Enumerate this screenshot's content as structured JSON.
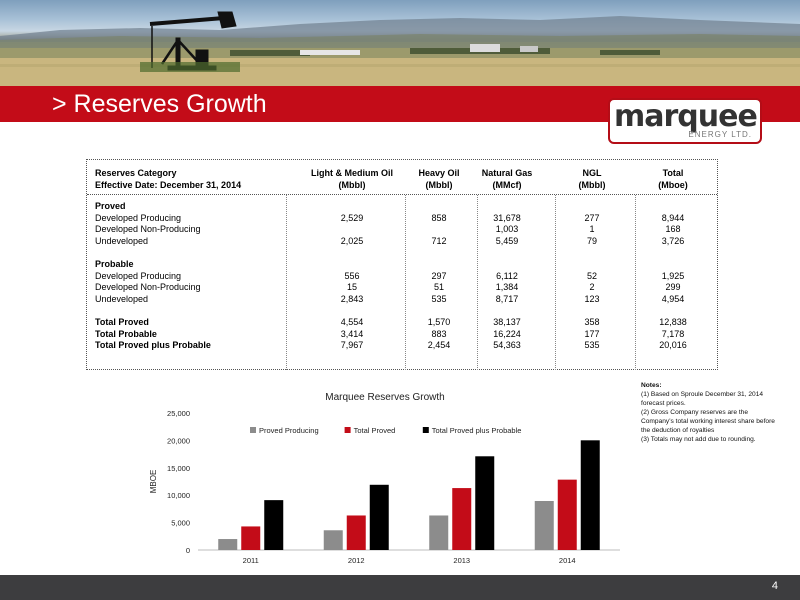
{
  "slide": {
    "title": "> Reserves Growth",
    "page_number": "4"
  },
  "logo": {
    "word": "marquee",
    "sub": "ENERGY LTD."
  },
  "table": {
    "header": {
      "col0_line1": "Reserves Category",
      "col0_line2": "Effective Date: December 31, 2014",
      "cols": [
        {
          "line1": "Light & Medium Oil",
          "line2": "(Mbbl)"
        },
        {
          "line1": "Heavy Oil",
          "line2": "(Mbbl)"
        },
        {
          "line1": "Natural Gas",
          "line2": "(MMcf)"
        },
        {
          "line1": "NGL",
          "line2": "(Mbbl)"
        },
        {
          "line1": "Total",
          "line2": "(Mboe)"
        }
      ]
    },
    "rows": [
      {
        "label": "Proved",
        "bold": true,
        "values": [
          "",
          "",
          "",
          "",
          ""
        ]
      },
      {
        "label": "Developed Producing",
        "bold": false,
        "values": [
          "2,529",
          "858",
          "31,678",
          "277",
          "8,944"
        ]
      },
      {
        "label": "Developed Non-Producing",
        "bold": false,
        "values": [
          "",
          "",
          "1,003",
          "1",
          "168"
        ]
      },
      {
        "label": "Undeveloped",
        "bold": false,
        "values": [
          "2,025",
          "712",
          "5,459",
          "79",
          "3,726"
        ]
      },
      {
        "label": "",
        "bold": false,
        "values": [
          "",
          "",
          "",
          "",
          ""
        ]
      },
      {
        "label": "Probable",
        "bold": true,
        "values": [
          "",
          "",
          "",
          "",
          ""
        ]
      },
      {
        "label": "Developed Producing",
        "bold": false,
        "values": [
          "556",
          "297",
          "6,112",
          "52",
          "1,925"
        ]
      },
      {
        "label": "Developed Non-Producing",
        "bold": false,
        "values": [
          "15",
          "51",
          "1,384",
          "2",
          "299"
        ]
      },
      {
        "label": "Undeveloped",
        "bold": false,
        "values": [
          "2,843",
          "535",
          "8,717",
          "123",
          "4,954"
        ]
      },
      {
        "label": "",
        "bold": false,
        "values": [
          "",
          "",
          "",
          "",
          ""
        ]
      },
      {
        "label": "Total Proved",
        "bold": true,
        "values": [
          "4,554",
          "1,570",
          "38,137",
          "358",
          "12,838"
        ]
      },
      {
        "label": "Total Probable",
        "bold": true,
        "values": [
          "3,414",
          "883",
          "16,224",
          "177",
          "7,178"
        ]
      },
      {
        "label": "Total Proved plus Probable",
        "bold": true,
        "values": [
          "7,967",
          "2,454",
          "54,363",
          "535",
          "20,016"
        ]
      }
    ]
  },
  "notes": {
    "heading": "Notes:",
    "items": [
      "(1) Based on Sproule December 31, 2014 forecast prices.",
      "(2) Gross Company reserves are the Company's total working interest share before the deduction of royalties",
      "(3) Totals may not add due to rounding."
    ]
  },
  "chart_data": {
    "type": "bar",
    "title": "Marquee Reserves Growth",
    "ylabel": "MBOE",
    "xlabel": "",
    "categories": [
      "2011",
      "2012",
      "2013",
      "2014"
    ],
    "series": [
      {
        "name": "Proved Producing",
        "color": "#8c8c8c",
        "values": [
          2000,
          3600,
          6300,
          8944
        ]
      },
      {
        "name": "Total Proved",
        "color": "#c30c18",
        "values": [
          4300,
          6300,
          11300,
          12838
        ]
      },
      {
        "name": "Total Proved plus Probable",
        "color": "#000000",
        "values": [
          9100,
          11900,
          17100,
          20016
        ]
      }
    ],
    "ylim": [
      0,
      25000
    ],
    "yticks": [
      "0",
      "5,000",
      "10,000",
      "15,000",
      "20,000",
      "25,000"
    ],
    "ytick_values": [
      0,
      5000,
      10000,
      15000,
      20000,
      25000
    ],
    "grid": false,
    "legend_position": "top"
  },
  "colors": {
    "brand_red": "#c30c18",
    "footer": "#3d3d3f"
  }
}
